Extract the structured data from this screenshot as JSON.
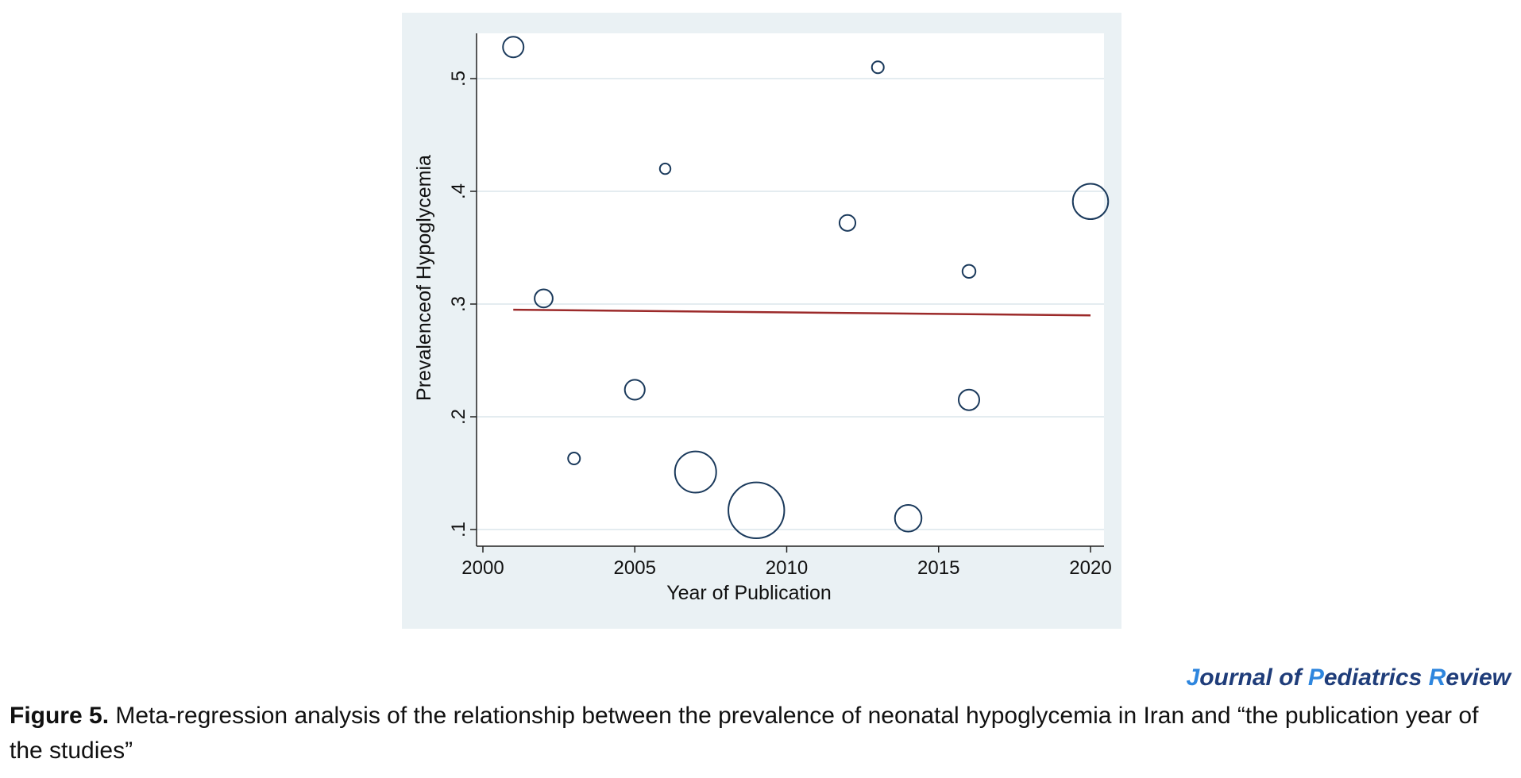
{
  "chart_data": {
    "type": "scatter",
    "title": "",
    "xlabel": "Year of Publication",
    "ylabel": "Prevalenceof Hypoglycemia",
    "xlim": [
      2000,
      2020
    ],
    "ylim": [
      0.1,
      0.54
    ],
    "xticks": [
      2000,
      2005,
      2010,
      2015,
      2020
    ],
    "xtick_labels": [
      "2000",
      "2005",
      "2010",
      "2015",
      "2020"
    ],
    "yticks": [
      0.1,
      0.2,
      0.3,
      0.4,
      0.5
    ],
    "ytick_labels": [
      ".1",
      ".2",
      ".3",
      ".4",
      ".5"
    ],
    "grid": true,
    "points": [
      {
        "x": 2001,
        "y": 0.528,
        "weight": 3
      },
      {
        "x": 2002,
        "y": 0.305,
        "weight": 2.3
      },
      {
        "x": 2003,
        "y": 0.163,
        "weight": 1
      },
      {
        "x": 2005,
        "y": 0.224,
        "weight": 2.8
      },
      {
        "x": 2006,
        "y": 0.42,
        "weight": 0.8
      },
      {
        "x": 2007,
        "y": 0.151,
        "weight": 12
      },
      {
        "x": 2009,
        "y": 0.117,
        "weight": 22
      },
      {
        "x": 2012,
        "y": 0.372,
        "weight": 1.8
      },
      {
        "x": 2013,
        "y": 0.51,
        "weight": 1
      },
      {
        "x": 2014,
        "y": 0.11,
        "weight": 5
      },
      {
        "x": 2016,
        "y": 0.329,
        "weight": 1.2
      },
      {
        "x": 2016,
        "y": 0.215,
        "weight": 3
      },
      {
        "x": 2020,
        "y": 0.391,
        "weight": 8.8
      }
    ],
    "fit_line": {
      "x": [
        2001,
        2020
      ],
      "y": [
        0.295,
        0.29
      ]
    },
    "colors": {
      "marker": "#1b3a5c",
      "fit_line": "#9c2a2a",
      "grid": "#ffffff",
      "plot_bg": "#ffffff",
      "panel_bg": "#eaf1f4"
    }
  },
  "journal": {
    "part1_initial": "J",
    "part1_rest": "ournal of ",
    "part2_initial": "P",
    "part2_rest": "ediatrics ",
    "part3_initial": "R",
    "part3_rest": "eview"
  },
  "caption": {
    "label": "Figure 5.",
    "text": " Meta-regression analysis of the relationship between the prevalence of neonatal hypoglycemia in Iran and “the publication year of the studies”"
  }
}
